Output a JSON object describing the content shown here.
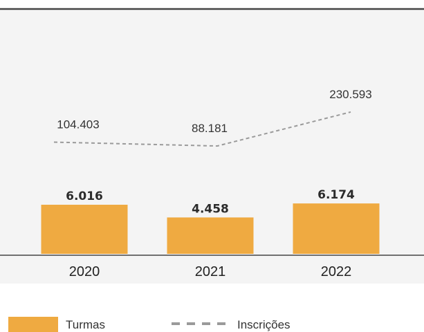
{
  "chart_data": {
    "type": "bar",
    "categories": [
      "2020",
      "2021",
      "2022"
    ],
    "series": [
      {
        "name": "Turmas",
        "type": "bar",
        "values": [
          6016,
          4458,
          6174
        ],
        "labels": [
          "6.016",
          "4.458",
          "6.174"
        ]
      },
      {
        "name": "Inscrições",
        "type": "line",
        "values": [
          104403,
          88181,
          230593
        ],
        "labels": [
          "104.403",
          "88.181",
          "230.593"
        ]
      }
    ],
    "title": "",
    "xlabel": "",
    "ylabel": "",
    "grid": false,
    "legend": "bottom-left"
  },
  "colors": {
    "bar": "#EFAA41",
    "line": "#9A9A9A",
    "panel": "#F4F4F4",
    "axis": "#444444"
  }
}
